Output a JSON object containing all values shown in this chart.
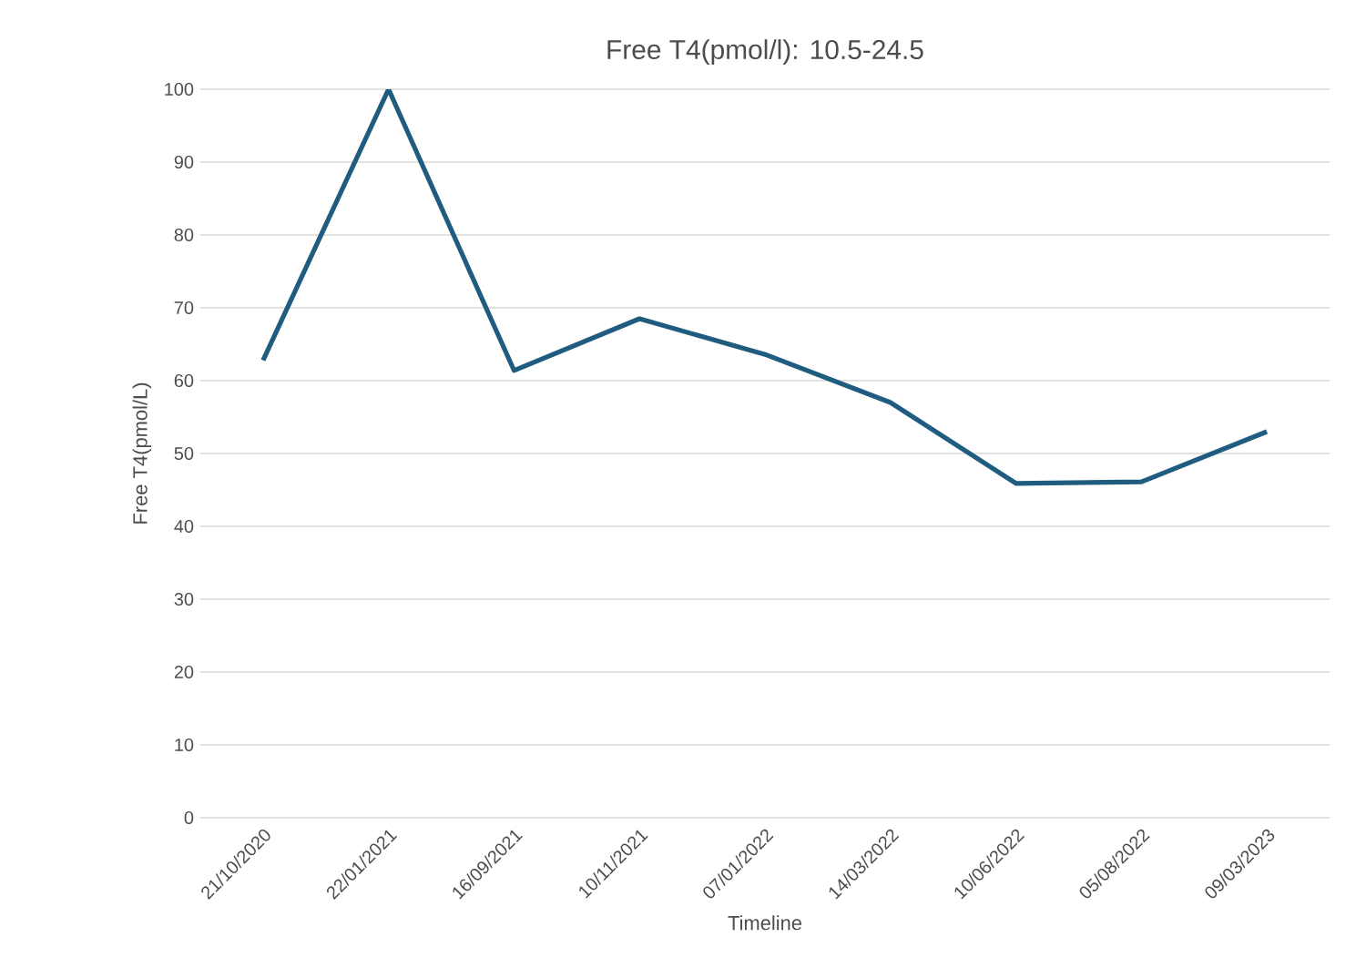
{
  "chart_data": {
    "type": "line",
    "title": "Free T4(pmol/l): 10.5-24.5",
    "xlabel": "Timeline",
    "ylabel": "Free T4(pmol/L)",
    "categories": [
      "21/10/2020",
      "22/01/2021",
      "16/09/2021",
      "10/11/2021",
      "07/01/2022",
      "14/03/2022",
      "10/06/2022",
      "05/08/2022",
      "09/03/2023"
    ],
    "series": [
      {
        "color": "#1f5c80",
        "values": [
          62.8,
          100,
          61.4,
          68.5,
          63.6,
          57.0,
          45.9,
          46.1,
          53.0
        ]
      }
    ],
    "ylim": [
      0,
      100
    ],
    "yticks": [
      0,
      10,
      20,
      30,
      40,
      50,
      60,
      70,
      80,
      90,
      100
    ],
    "grid": "y",
    "marker": "none",
    "line_style": "solid"
  }
}
